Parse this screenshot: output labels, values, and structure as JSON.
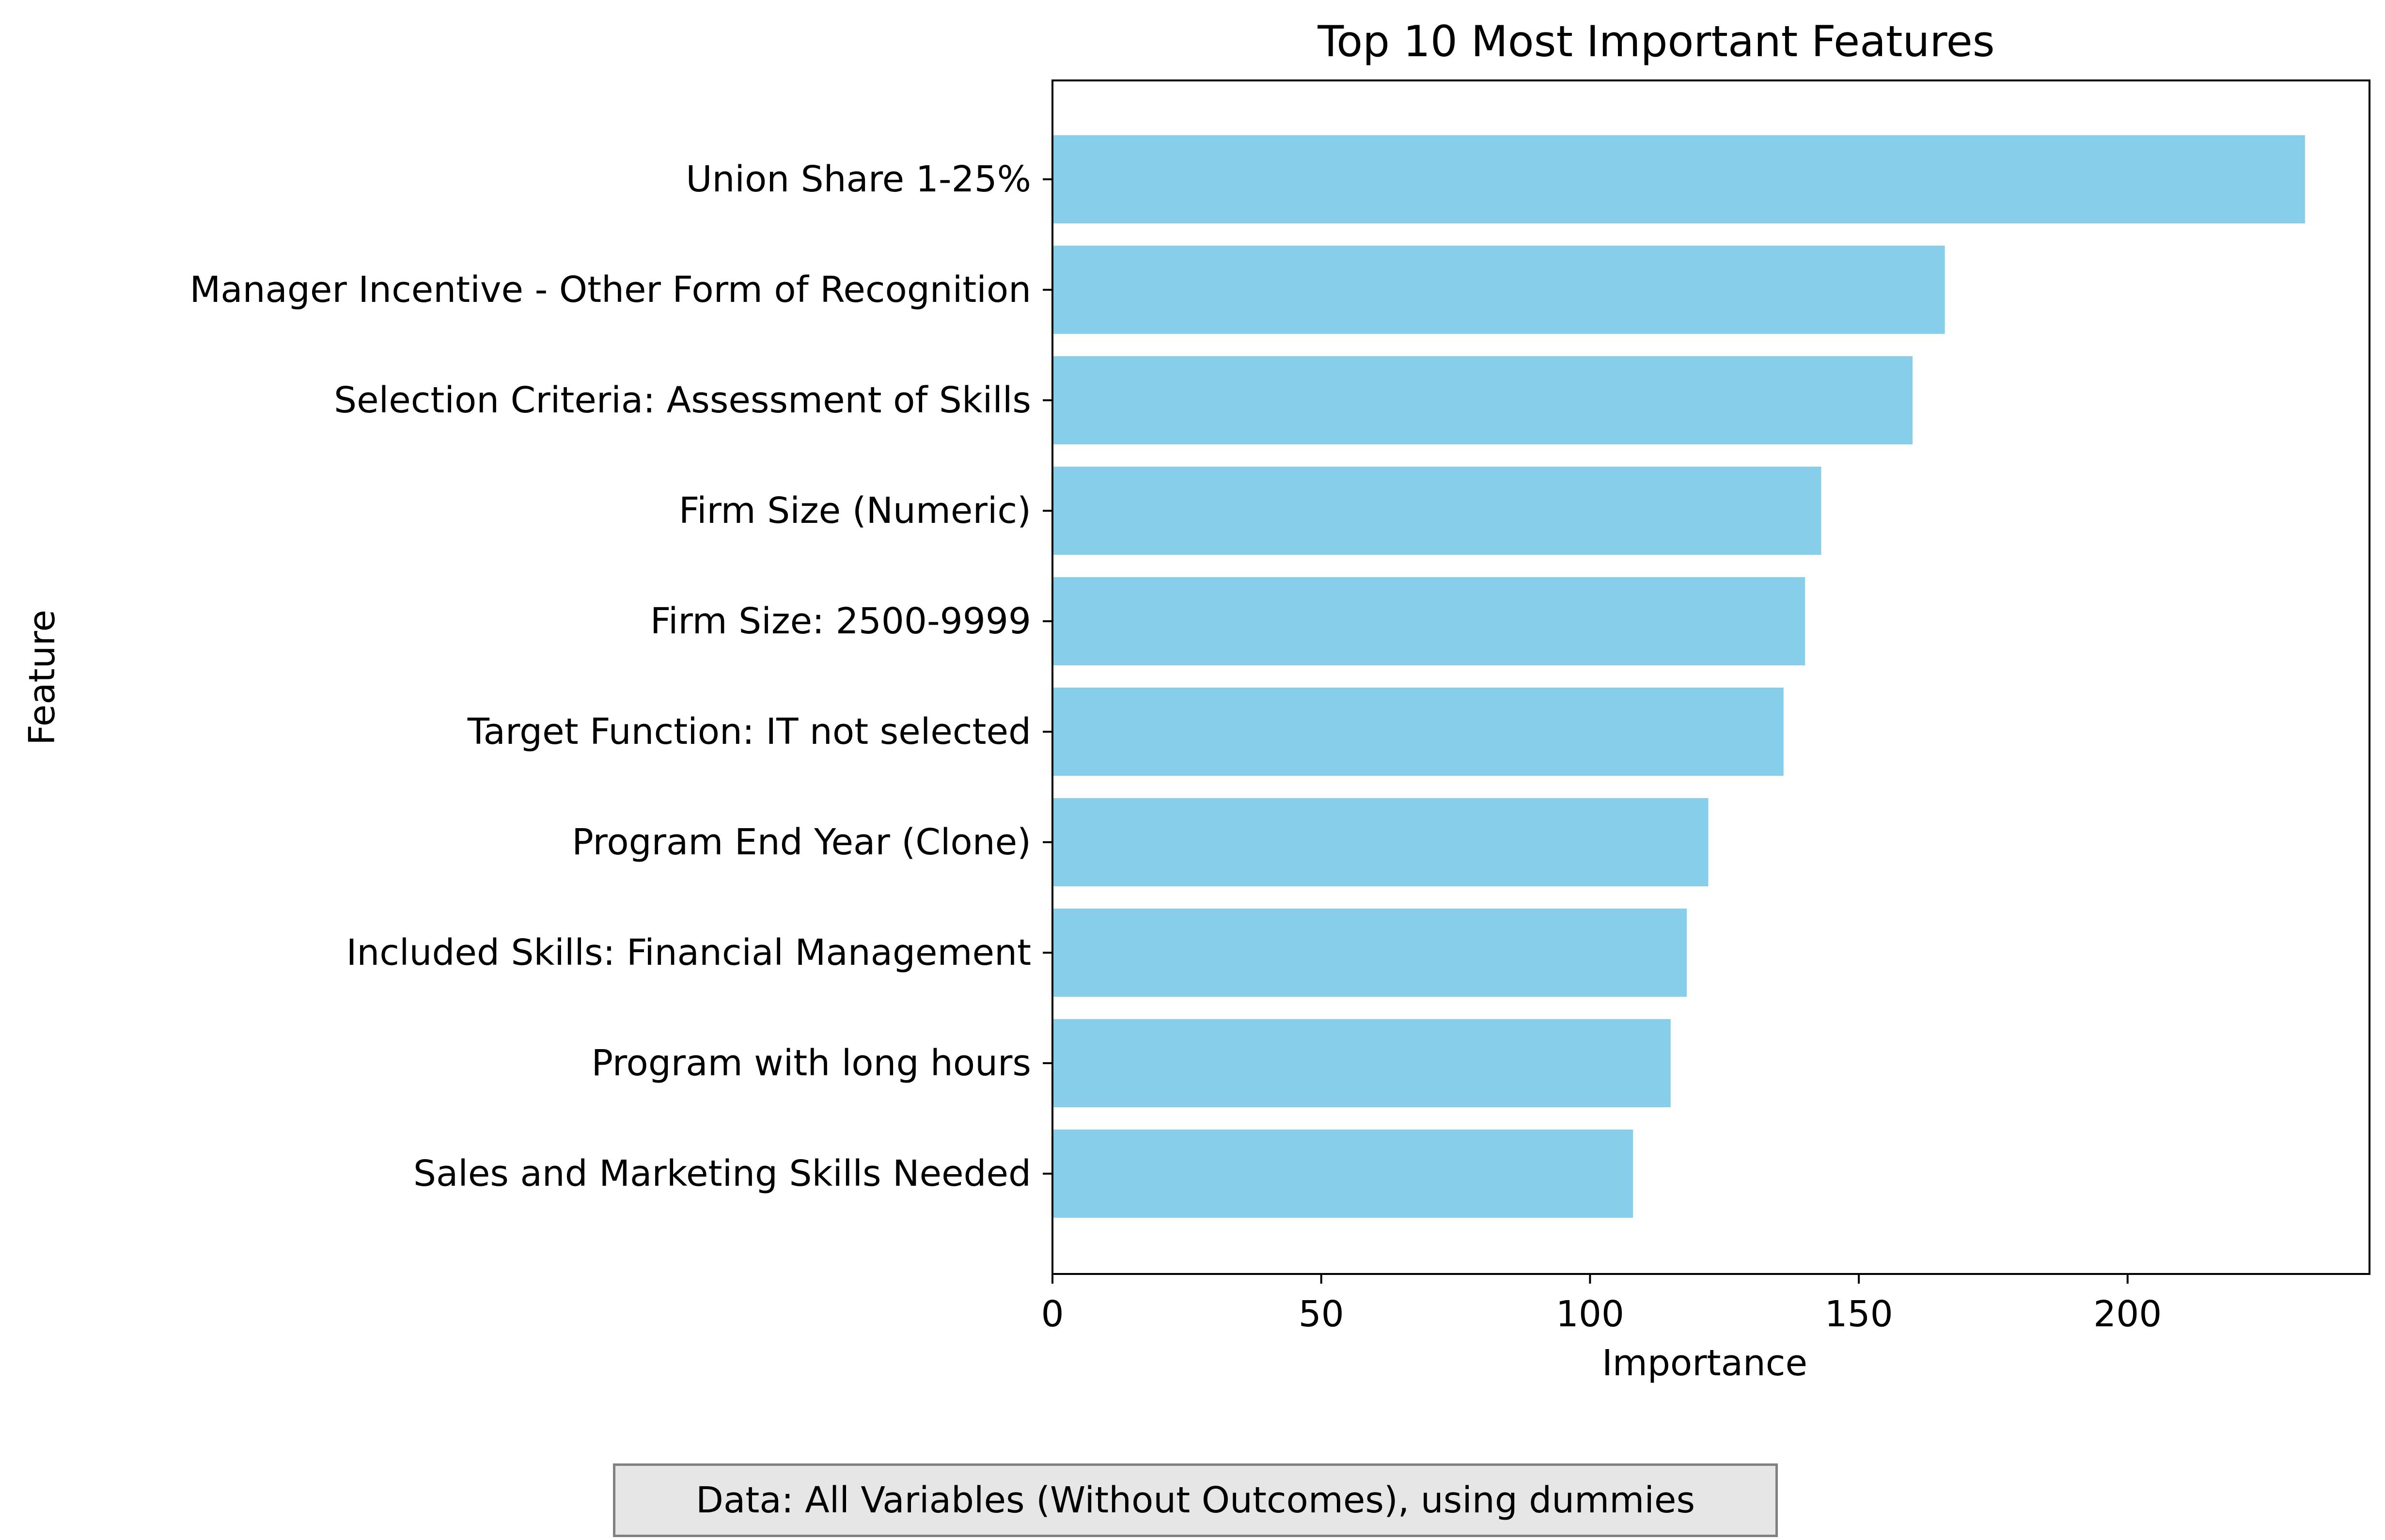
{
  "chart_data": {
    "type": "bar",
    "orientation": "horizontal",
    "title": "Top 10 Most Important Features",
    "xlabel": "Importance",
    "ylabel": "Feature",
    "categories": [
      "Union Share 1-25%",
      "Manager Incentive - Other Form of Recognition",
      "Selection Criteria: Assessment of Skills",
      "Firm Size (Numeric)",
      "Firm Size: 2500-9999",
      "Target Function: IT not selected",
      "Program End Year (Clone)",
      "Included Skills: Financial Management",
      "Program with long hours",
      "Sales and Marketing Skills Needed"
    ],
    "values": [
      233,
      166,
      160,
      143,
      140,
      136,
      122,
      118,
      115,
      108
    ],
    "xlim": [
      0,
      245
    ],
    "xticks": [
      0,
      50,
      100,
      150,
      200
    ],
    "grid": false,
    "bar_color": "#87ceeb"
  },
  "note": "Data: All Variables (Without Outcomes), using dummies"
}
